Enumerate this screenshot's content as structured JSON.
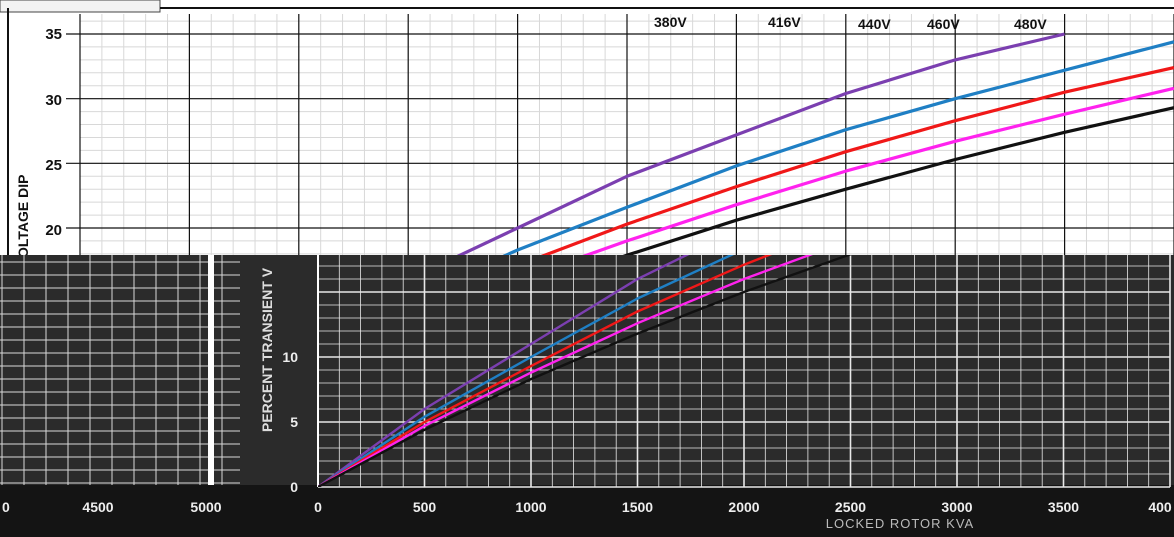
{
  "charts": [
    {
      "type": "line",
      "ylabel": "VOLTAGE DIP",
      "ylabel_visible": "OLTAGE DIP",
      "y_ticks": [
        "35",
        "30",
        "25",
        "20"
      ],
      "ylim": [
        0,
        35
      ],
      "xlim": [
        0,
        5000
      ],
      "grid": true,
      "series": [
        {
          "name": "380V",
          "color": "#7b3fb0",
          "points": [
            [
              0,
              0
            ],
            [
              500,
              6
            ],
            [
              1000,
              11
            ],
            [
              1500,
              16
            ],
            [
              2000,
              20
            ],
            [
              2500,
              24
            ],
            [
              3000,
              27.2
            ],
            [
              3500,
              30.4
            ],
            [
              4000,
              33
            ],
            [
              4500,
              35
            ]
          ]
        },
        {
          "name": "416V",
          "color": "#1f7fc4",
          "points": [
            [
              0,
              0
            ],
            [
              500,
              5.4
            ],
            [
              1000,
              10
            ],
            [
              1500,
              14.5
            ],
            [
              2000,
              18.3
            ],
            [
              2500,
              21.6
            ],
            [
              3000,
              24.8
            ],
            [
              3500,
              27.6
            ],
            [
              4000,
              30
            ],
            [
              4500,
              32.2
            ],
            [
              5000,
              34.4
            ]
          ]
        },
        {
          "name": "440V",
          "color": "#f01818",
          "points": [
            [
              0,
              0
            ],
            [
              500,
              5
            ],
            [
              1000,
              9.3
            ],
            [
              1500,
              13.5
            ],
            [
              2000,
              17.1
            ],
            [
              2500,
              20.3
            ],
            [
              3000,
              23.2
            ],
            [
              3500,
              25.9
            ],
            [
              4000,
              28.3
            ],
            [
              4500,
              30.5
            ],
            [
              5000,
              32.4
            ]
          ]
        },
        {
          "name": "460V",
          "color": "#ff22ee",
          "points": [
            [
              0,
              0
            ],
            [
              500,
              4.7
            ],
            [
              1000,
              8.8
            ],
            [
              1500,
              12.6
            ],
            [
              2000,
              16
            ],
            [
              2500,
              19
            ],
            [
              3000,
              21.8
            ],
            [
              3500,
              24.4
            ],
            [
              4000,
              26.7
            ],
            [
              4500,
              28.8
            ],
            [
              5000,
              30.8
            ]
          ]
        },
        {
          "name": "480V",
          "color": "#111111",
          "points": [
            [
              0,
              0
            ],
            [
              500,
              4.4
            ],
            [
              1000,
              8.3
            ],
            [
              1500,
              11.8
            ],
            [
              2000,
              15
            ],
            [
              2500,
              17.9
            ],
            [
              3000,
              20.6
            ],
            [
              3500,
              23
            ],
            [
              4000,
              25.3
            ],
            [
              4500,
              27.4
            ],
            [
              5000,
              29.3
            ]
          ]
        }
      ]
    },
    {
      "type": "line",
      "ylabel": "PERCENT TRANSIENT V",
      "xlabel": "LOCKED ROTOR KVA",
      "x_ticks": [
        "0",
        "500",
        "1000",
        "1500",
        "2000",
        "2500",
        "3000",
        "3500",
        "400"
      ],
      "y_ticks": [
        "0",
        "5",
        "10"
      ],
      "left_x_ticks": [
        "0",
        "4500",
        "5000"
      ],
      "xlim": [
        0,
        4000
      ],
      "ylim": [
        0,
        15
      ],
      "grid": true
    }
  ]
}
